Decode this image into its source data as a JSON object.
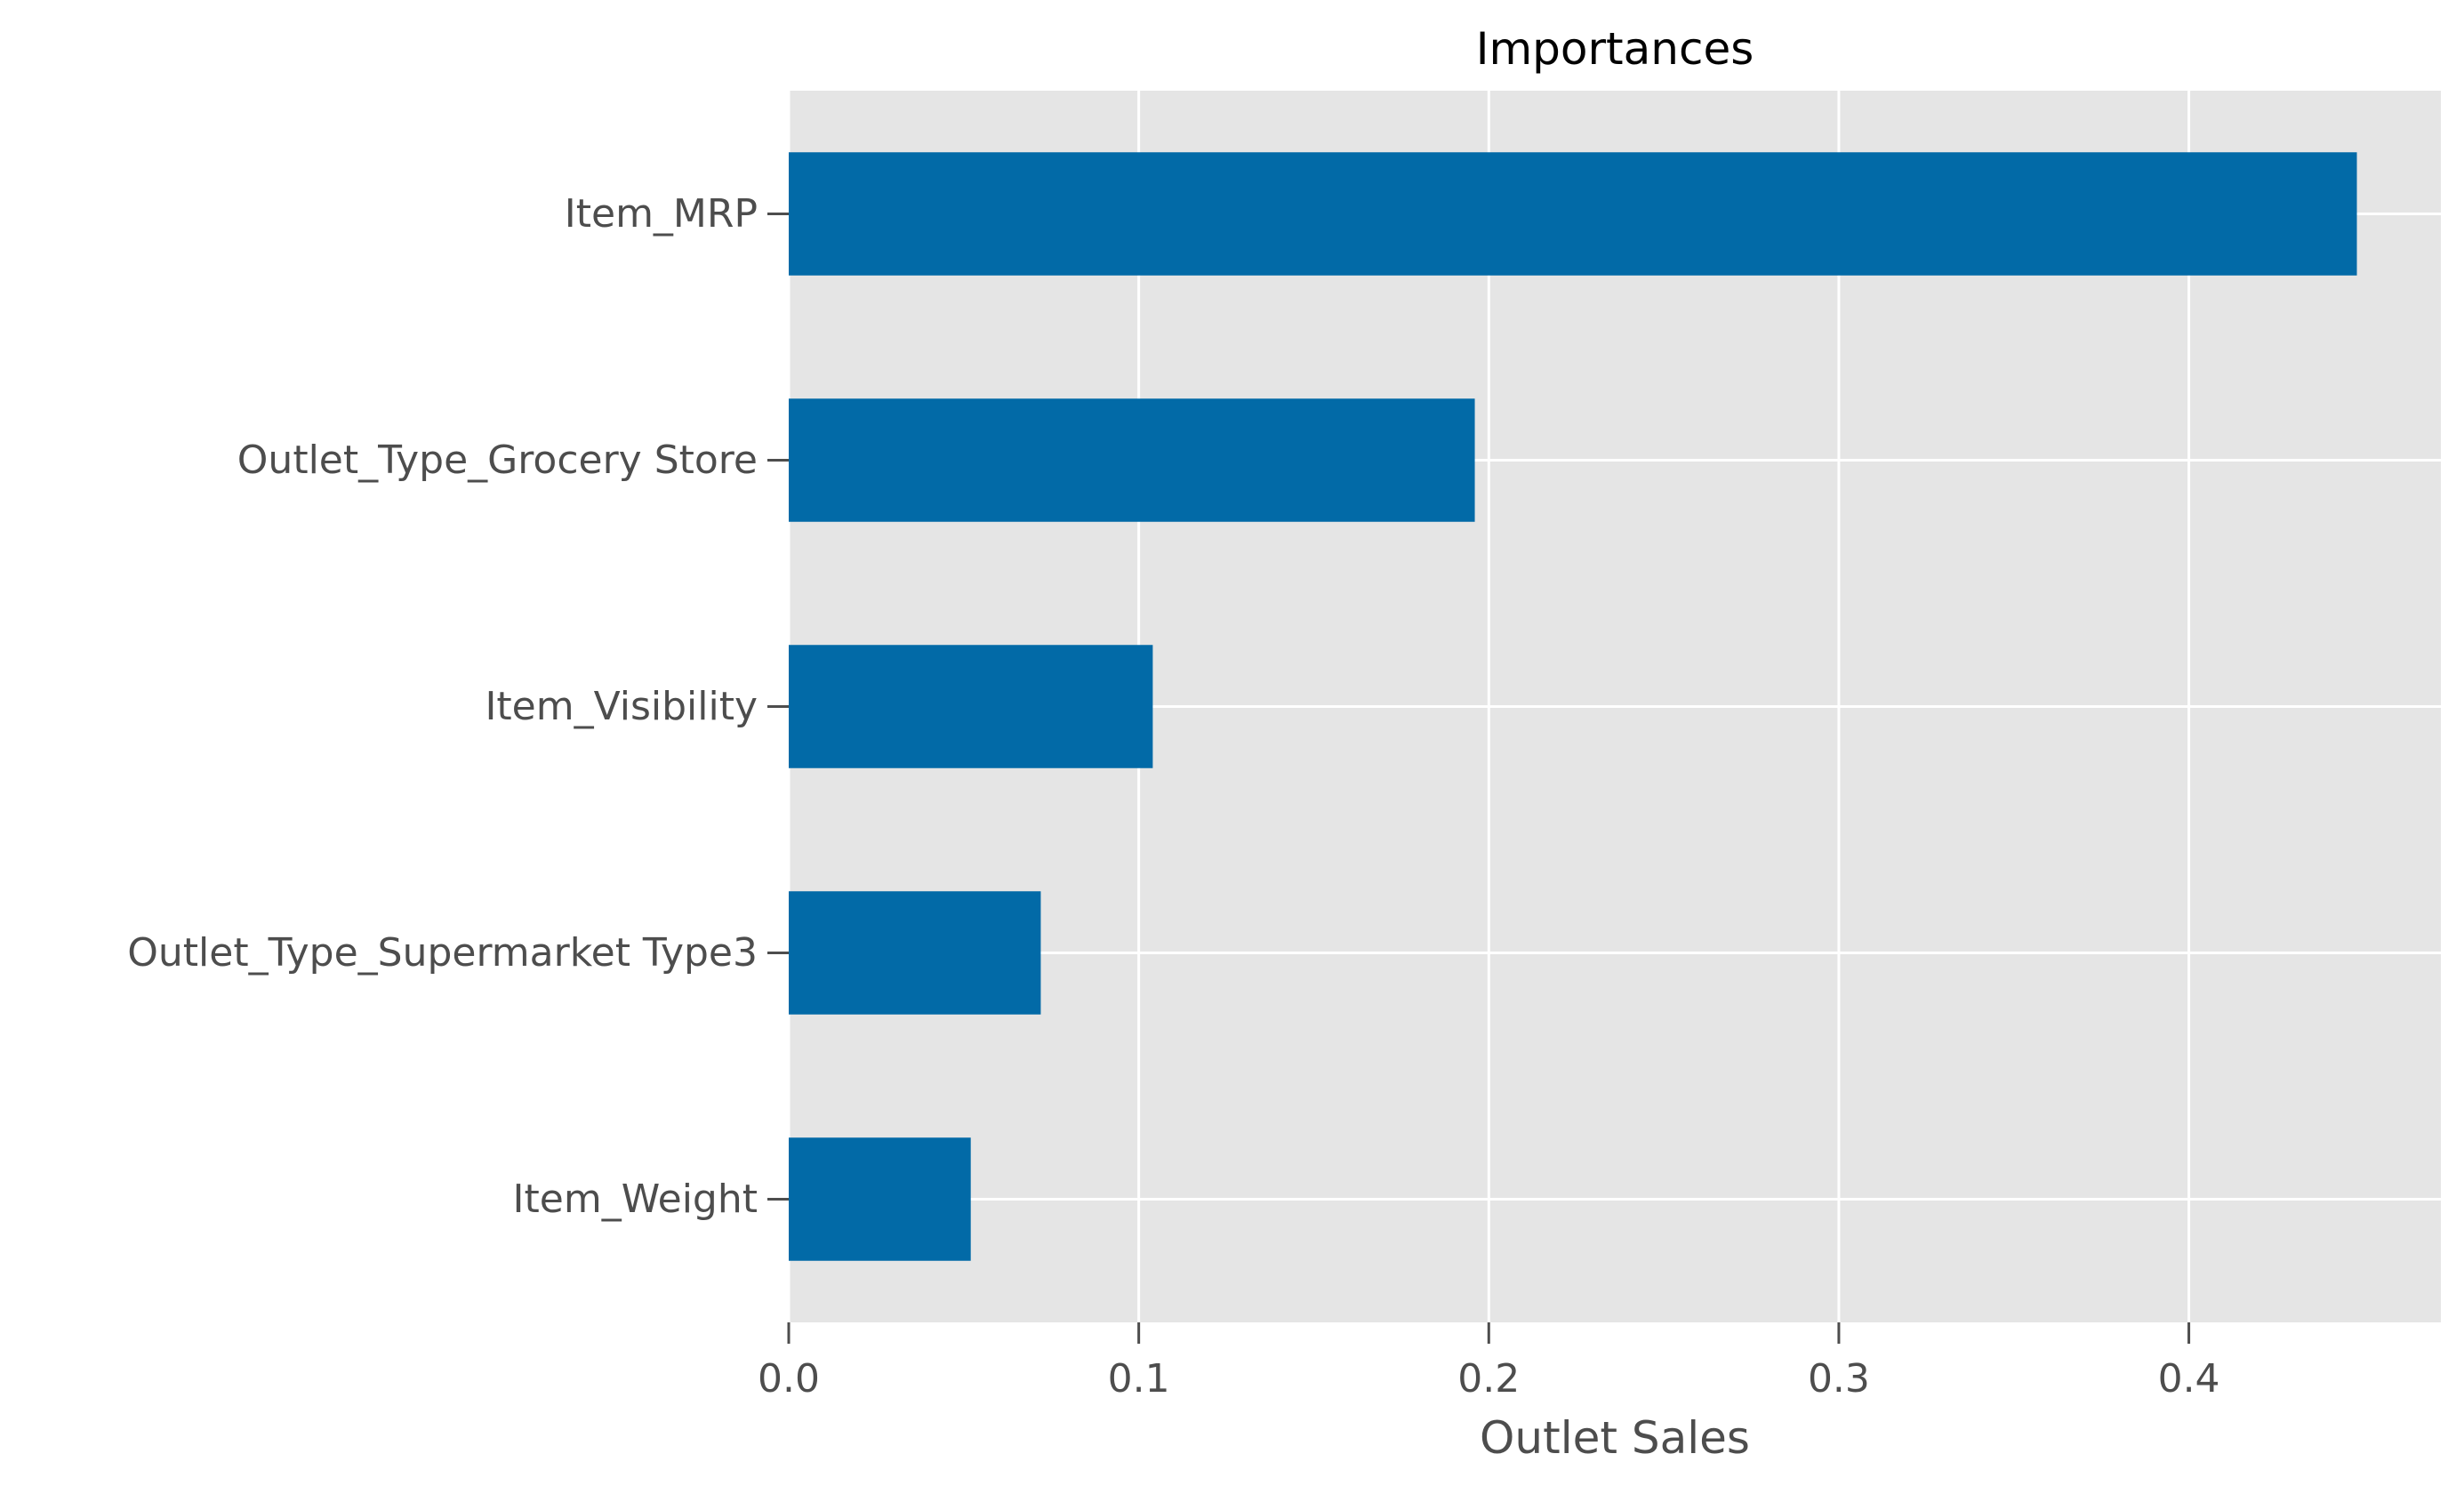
{
  "chart_data": {
    "type": "bar",
    "orientation": "horizontal",
    "title": "Importances",
    "xlabel": "Outlet Sales",
    "ylabel": "",
    "categories": [
      "Item_MRP",
      "Outlet_Type_Grocery Store",
      "Item_Visibility",
      "Outlet_Type_Supermarket Type3",
      "Item_Weight"
    ],
    "values": [
      0.448,
      0.196,
      0.104,
      0.072,
      0.052
    ],
    "xlim": [
      0,
      0.472
    ],
    "xticks": [
      0.0,
      0.1,
      0.2,
      0.3,
      0.4
    ],
    "xtick_labels": [
      "0.0",
      "0.1",
      "0.2",
      "0.3",
      "0.4"
    ],
    "grid": true,
    "legend": "none",
    "colors": {
      "bar": "#026aa7",
      "plot_background": "#e5e5e5",
      "grid": "#ffffff",
      "tick_text": "#4d4d4d",
      "title_text": "#000000"
    }
  }
}
